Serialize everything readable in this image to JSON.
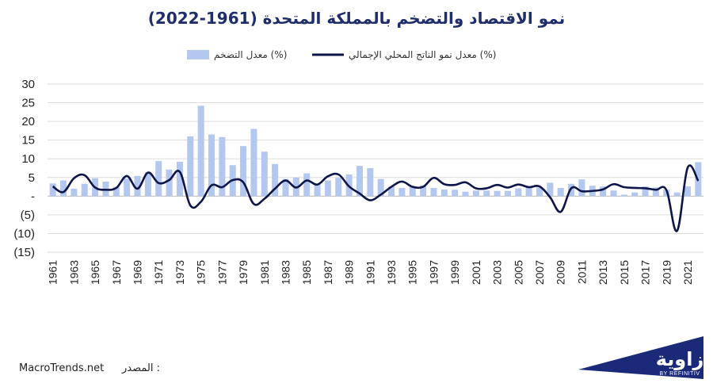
{
  "chart_data": {
    "type": "bar+line",
    "title": "نمو الاقتصاد والتضخم بالمملكة المتحدة (1961-2022)",
    "legend": {
      "placement": "top-center",
      "entries": [
        "معدل التضخم (%)",
        "معدل نمو الناتج المحلي الإجمالي (%)"
      ]
    },
    "x_labels": [
      "1961",
      "1963",
      "1965",
      "1967",
      "1969",
      "1971",
      "1973",
      "1975",
      "1977",
      "1979",
      "1981",
      "1983",
      "1985",
      "1987",
      "1989",
      "1991",
      "1993",
      "1995",
      "1997",
      "1999",
      "2001",
      "2003",
      "2005",
      "2007",
      "2009",
      "2011",
      "2013",
      "2015",
      "2017",
      "2019",
      "2021"
    ],
    "y_ticks": [
      "30",
      "25",
      "20",
      "15",
      "10",
      "5",
      "-",
      "(5)",
      "(10)",
      "(15)"
    ],
    "ylim": [
      -15,
      30
    ],
    "grid": true,
    "years": [
      1961,
      1962,
      1963,
      1964,
      1965,
      1966,
      1967,
      1968,
      1969,
      1970,
      1971,
      1972,
      1973,
      1974,
      1975,
      1976,
      1977,
      1978,
      1979,
      1980,
      1981,
      1982,
      1983,
      1984,
      1985,
      1986,
      1987,
      1988,
      1989,
      1990,
      1991,
      1992,
      1993,
      1994,
      1995,
      1996,
      1997,
      1998,
      1999,
      2000,
      2001,
      2002,
      2003,
      2004,
      2005,
      2006,
      2007,
      2008,
      2009,
      2010,
      2011,
      2012,
      2013,
      2014,
      2015,
      2016,
      2017,
      2018,
      2019,
      2020,
      2021,
      2022
    ],
    "series": [
      {
        "name": "معدل التضخم (%)",
        "type": "bar",
        "color": "#b4c7ee",
        "values": [
          3.4,
          4.2,
          2.0,
          3.3,
          4.8,
          3.9,
          2.5,
          4.7,
          5.4,
          6.4,
          9.4,
          7.1,
          9.2,
          16.0,
          24.2,
          16.5,
          15.8,
          8.3,
          13.4,
          18.0,
          11.9,
          8.6,
          4.6,
          5.0,
          6.1,
          3.4,
          4.2,
          4.9,
          5.8,
          8.1,
          7.5,
          4.6,
          2.6,
          2.2,
          2.7,
          2.9,
          2.2,
          1.8,
          1.7,
          1.2,
          1.5,
          1.5,
          1.4,
          1.4,
          2.1,
          2.3,
          2.3,
          3.6,
          2.2,
          3.3,
          4.5,
          2.8,
          2.6,
          1.5,
          0.4,
          1.0,
          2.6,
          2.3,
          1.7,
          1.0,
          2.6,
          9.1
        ]
      },
      {
        "name": "معدل نمو الناتج المحلي الإجمالي (%)",
        "type": "line",
        "color": "#0e1548",
        "values": [
          2.6,
          1.1,
          4.8,
          5.6,
          2.3,
          1.7,
          2.2,
          5.4,
          2.0,
          6.3,
          3.5,
          4.3,
          6.5,
          -2.5,
          -1.5,
          2.9,
          2.4,
          4.3,
          3.7,
          -2.1,
          -0.7,
          2.0,
          4.2,
          2.3,
          4.2,
          3.1,
          5.3,
          5.8,
          2.6,
          0.7,
          -1.1,
          0.4,
          2.5,
          3.9,
          2.5,
          2.5,
          4.9,
          3.2,
          3.0,
          3.7,
          2.1,
          2.1,
          3.0,
          2.3,
          3.1,
          2.4,
          2.6,
          -0.3,
          -4.2,
          2.1,
          1.3,
          1.4,
          1.8,
          3.2,
          2.4,
          2.2,
          2.1,
          1.7,
          1.6,
          -9.3,
          7.6,
          4.1
        ]
      }
    ]
  },
  "source": {
    "label": "المصدر :",
    "value": "MacroTrends.net"
  },
  "logo": {
    "text": "زاوية",
    "subtext": "BY REFINITIV"
  }
}
